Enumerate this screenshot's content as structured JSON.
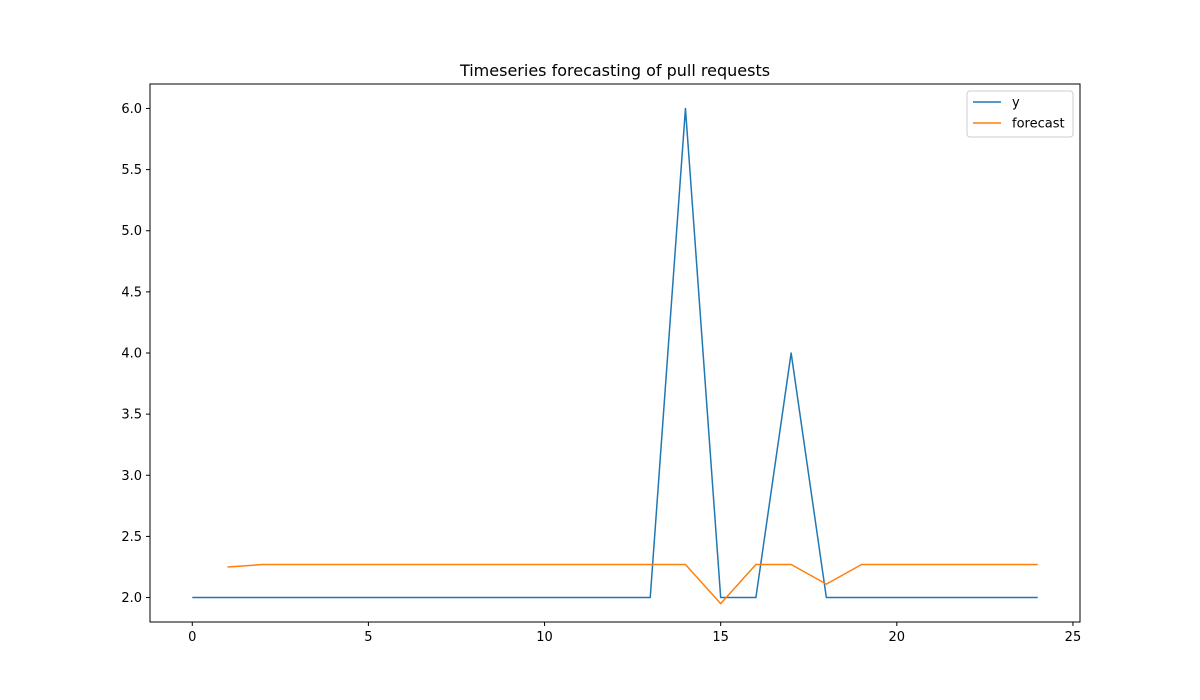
{
  "chart_data": {
    "type": "line",
    "title": "Timeseries forecasting of pull requests",
    "xlabel": "",
    "ylabel": "",
    "xlim": [
      -1.2,
      25.2
    ],
    "ylim": [
      1.8,
      6.2
    ],
    "x_ticks": [
      0,
      5,
      10,
      15,
      20,
      25
    ],
    "y_ticks": [
      2.0,
      2.5,
      3.0,
      3.5,
      4.0,
      4.5,
      5.0,
      5.5,
      6.0
    ],
    "x_tick_labels": [
      "0",
      "5",
      "10",
      "15",
      "20",
      "25"
    ],
    "y_tick_labels": [
      "2.0",
      "2.5",
      "3.0",
      "3.5",
      "4.0",
      "4.5",
      "5.0",
      "5.5",
      "6.0"
    ],
    "grid": false,
    "legend_position": "top-right",
    "series": [
      {
        "name": "y",
        "color": "#1f77b4",
        "x": [
          0,
          1,
          2,
          3,
          4,
          5,
          6,
          7,
          8,
          9,
          10,
          11,
          12,
          13,
          14,
          15,
          16,
          17,
          18,
          19,
          20,
          21,
          22,
          23,
          24
        ],
        "values": [
          2,
          2,
          2,
          2,
          2,
          2,
          2,
          2,
          2,
          2,
          2,
          2,
          2,
          2,
          6,
          2,
          2,
          4,
          2,
          2,
          2,
          2,
          2,
          2,
          2
        ]
      },
      {
        "name": "forecast",
        "color": "#ff7f0e",
        "x": [
          1,
          2,
          3,
          4,
          5,
          6,
          7,
          8,
          9,
          10,
          11,
          12,
          13,
          14,
          15,
          16,
          17,
          18,
          19,
          20,
          21,
          22,
          23,
          24
        ],
        "values": [
          2.25,
          2.27,
          2.27,
          2.27,
          2.27,
          2.27,
          2.27,
          2.27,
          2.27,
          2.27,
          2.27,
          2.27,
          2.27,
          2.27,
          1.95,
          2.27,
          2.27,
          2.11,
          2.27,
          2.27,
          2.27,
          2.27,
          2.27,
          2.27
        ]
      }
    ]
  }
}
